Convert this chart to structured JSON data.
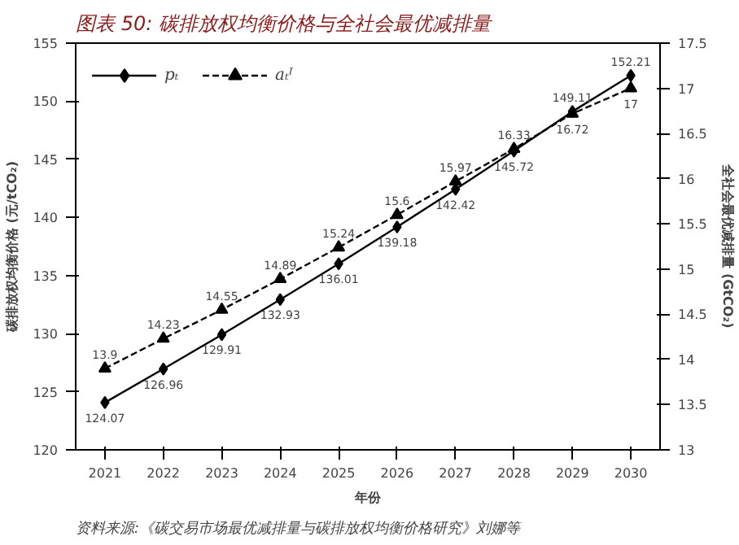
{
  "chart_data": {
    "type": "line",
    "title": "图表 50:  碳排放权均衡价格与全社会最优减排量",
    "xlabel": "年份",
    "ylabel": "碳排放权均衡价格 (元/tCO₂)",
    "y2label": "全社会最优减排量 (GtCO₂)",
    "x": [
      2021,
      2022,
      2023,
      2024,
      2025,
      2026,
      2027,
      2028,
      2029,
      2030
    ],
    "series": [
      {
        "name": "pₜ",
        "color": "#000000",
        "values": [
          124.07,
          126.96,
          129.91,
          132.93,
          136.01,
          139.18,
          142.42,
          145.72,
          149.11,
          152.21
        ],
        "marker": "diamond",
        "line_style": "solid"
      },
      {
        "name": "aₜᴵ",
        "color": "#000000",
        "values": [
          13.9,
          14.23,
          14.55,
          14.89,
          15.24,
          15.6,
          15.97,
          16.33,
          16.72,
          17
        ],
        "marker": "triangle",
        "line_style": "dashed",
        "axis": "y2"
      }
    ],
    "xlim": [
      2020.5,
      2030.5
    ],
    "xticks": [
      2021,
      2022,
      2023,
      2024,
      2025,
      2026,
      2027,
      2028,
      2029,
      2030
    ],
    "ylim": [
      120,
      155
    ],
    "yticks": [
      120,
      125,
      130,
      135,
      140,
      145,
      150,
      155
    ],
    "y2lim": [
      13,
      17.5
    ],
    "y2ticks": [
      13,
      13.5,
      14,
      14.5,
      15,
      15.5,
      16,
      16.5,
      17,
      17.5
    ],
    "data_labels": true,
    "legend": "top left",
    "grid": false,
    "annotations": [
      "资料来源:《碳交易市场最优减排量与碳排放权均衡价格研究》刘娜等"
    ]
  }
}
